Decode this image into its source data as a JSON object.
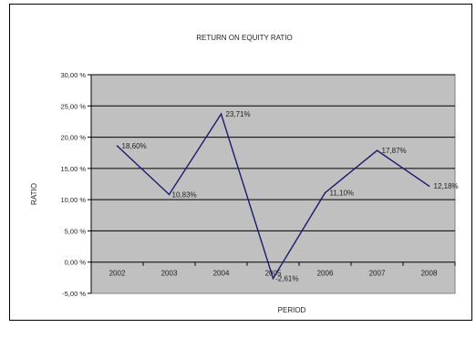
{
  "chart_data": {
    "type": "line",
    "title": "RETURN ON EQUITY RATIO",
    "xlabel": "PERIOD",
    "ylabel": "RATIO",
    "categories": [
      "2002",
      "2003",
      "2004",
      "2005",
      "2006",
      "2007",
      "2008"
    ],
    "series": [
      {
        "values": [
          18.6,
          10.83,
          23.71,
          -2.61,
          11.1,
          17.87,
          12.18
        ],
        "labels": [
          "18,60%",
          "10,83%",
          "23,71%",
          "-2,61%",
          "11,10%",
          "17,87%",
          "12,18%"
        ]
      }
    ],
    "y_ticks": [
      "-5,00 %",
      "0,00 %",
      "5,00 %",
      "10,00 %",
      "15,00 %",
      "20,00 %",
      "25,00 %",
      "30,00 %"
    ],
    "ylim": [
      -5,
      30
    ],
    "grid": true,
    "legend": "none",
    "colors": {
      "plot_background": "#c0c0c0",
      "line": "#1a1a6e",
      "gridline": "#000000"
    }
  }
}
